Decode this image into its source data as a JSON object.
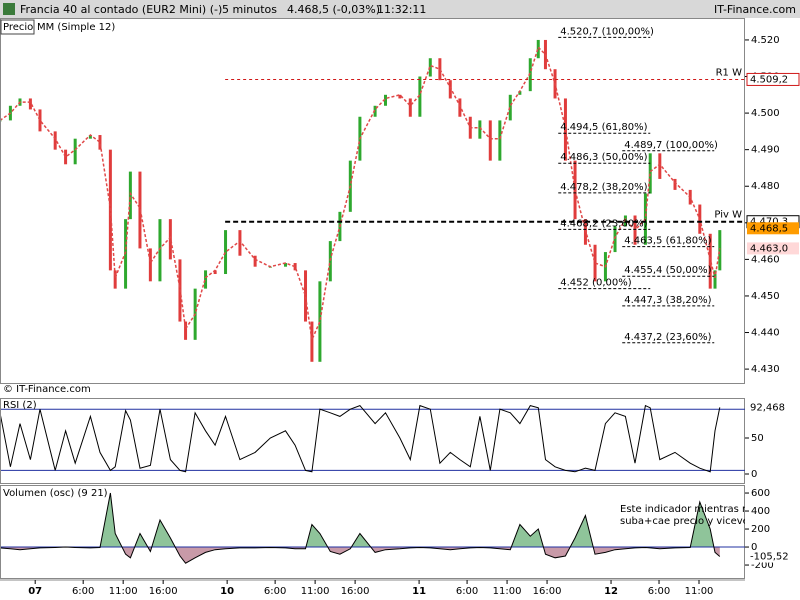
{
  "header": {
    "title": "Francia 40 al contado (EUR2 Mini) (-)",
    "interval": "5 minutos",
    "quote": "4.468,5 (-0,03%)",
    "time": "11:32:11",
    "brand": "IT-Finance.com",
    "credit": "© IT-Finance.com"
  },
  "chart_data": [
    {
      "type": "price",
      "legend": [
        "Precio",
        "MM (Simple 12)"
      ],
      "xlim": [
        -4.4,
        88.75
      ],
      "ylim": [
        4426.2,
        4526
      ],
      "yticks": [
        {
          "value": 4430,
          "label": "4.430"
        },
        {
          "value": 4440,
          "label": "4.440"
        },
        {
          "value": 4450,
          "label": "4.450"
        },
        {
          "value": 4460,
          "label": "4.460"
        },
        {
          "value": 4470,
          "label": "4.470"
        },
        {
          "value": 4480,
          "label": "4.480"
        },
        {
          "value": 4490,
          "label": "4.490"
        },
        {
          "value": 4500,
          "label": "4.500"
        },
        {
          "value": 4510,
          "label": "4.510"
        },
        {
          "value": 4520,
          "label": "4.520"
        }
      ],
      "x": [
        -4.4,
        -3.1,
        -1.9,
        -0.6,
        0.6,
        2.5,
        3.8,
        5,
        6.9,
        8.1,
        9.4,
        10,
        11.3,
        11.9,
        13.1,
        14.4,
        15.6,
        16.9,
        18.1,
        18.8,
        20,
        21.3,
        22.5,
        23.8,
        25.6,
        27.5,
        29.4,
        31.3,
        32.5,
        33.8,
        34.6,
        35.6,
        36.9,
        38.1,
        39.4,
        40.6,
        42.5,
        43.8,
        45.6,
        46.9,
        48.1,
        49.4,
        50.6,
        51.9,
        53.1,
        54.4,
        55.6,
        56.9,
        58.1,
        59.4,
        60.6,
        61.9,
        62.9,
        63.8,
        65,
        66.3,
        67.5,
        68.8,
        70,
        71.3,
        72.5,
        73.8,
        75,
        76.3,
        76.9,
        78.1,
        80,
        81.9,
        83.1,
        84.4,
        85,
        85.6
      ],
      "series": [
        {
          "name": "Precio",
          "color": "#2ea82e",
          "down_color": "#e03c3c",
          "values": [
            4498,
            4502,
            4504,
            4501,
            4495,
            4490,
            4486,
            4493,
            4494,
            4490,
            4457,
            4452,
            4471,
            4484,
            4463,
            4454,
            4471,
            4460,
            4443,
            4438,
            4452,
            4457,
            4456,
            4468,
            4461,
            4458,
            4458,
            4459,
            4457,
            4443,
            4432,
            4454,
            4465,
            4473,
            4487,
            4499,
            4502,
            4505,
            4504,
            4499,
            4510,
            4515,
            4509,
            4504,
            4499,
            4493,
            4498,
            4487,
            4498,
            4505,
            4506,
            4515,
            4520,
            4512,
            4504,
            4487,
            4471,
            4464,
            4454,
            4462,
            4469,
            4472,
            4464,
            4478,
            4489,
            4482,
            4479,
            4475,
            4467,
            4452,
            4457,
            4468
          ]
        },
        {
          "name": "MM (Simple 12)",
          "color": "#e04848",
          "values": [
            4498,
            4500,
            4503,
            4503,
            4498,
            4493,
            4488,
            4490,
            4494,
            4492,
            4474,
            4455,
            4462,
            4478,
            4474,
            4459,
            4463,
            4466,
            4452,
            4441,
            4445,
            4455,
            4457,
            4462,
            4465,
            4460,
            4458,
            4459,
            4458,
            4450,
            4438,
            4443,
            4460,
            4469,
            4480,
            4493,
            4501,
            4504,
            4505,
            4502,
            4505,
            4513,
            4512,
            4507,
            4502,
            4496,
            4496,
            4493,
            4493,
            4502,
            4506,
            4511,
            4518,
            4516,
            4508,
            4496,
            4479,
            4468,
            4459,
            4458,
            4466,
            4471,
            4468,
            4471,
            4484,
            4486,
            4481,
            4477,
            4471,
            4460,
            4455,
            4463
          ]
        }
      ],
      "levels": [
        {
          "name": "R1 W",
          "value": 4509.2,
          "label": "4.509,2",
          "from": 23.75,
          "color": "#d01818"
        },
        {
          "name": "Piv W",
          "value": 4470.3,
          "label": "4.470,3",
          "from": 23.75,
          "color": "#000000"
        }
      ],
      "markers": [
        {
          "value": 4468.5,
          "label": "4.468,5",
          "color": "#ff9c00"
        },
        {
          "value": 4463,
          "label": "4.463,0",
          "color": "#ffd8d8"
        }
      ],
      "fibonacci": [
        {
          "x": 65.4,
          "levels": [
            {
              "value": 4520.7,
              "label": "4.520,7 (100,00%)"
            },
            {
              "value": 4494.5,
              "label": "4.494,5 (61,80%)"
            },
            {
              "value": 4486.3,
              "label": "4.486,3 (50,00%)"
            },
            {
              "value": 4478.2,
              "label": "4.478,2 (38,20%)"
            },
            {
              "value": 4468.2,
              "label": "4.468,2 (23,60%)"
            },
            {
              "value": 4452,
              "label": "4.452 (0,00%)"
            }
          ]
        },
        {
          "x": 73.4,
          "levels": [
            {
              "value": 4489.7,
              "label": "4.489,7 (100,00%)"
            },
            {
              "value": 4463.5,
              "label": "4.463,5 (61,80%)"
            },
            {
              "value": 4455.4,
              "label": "4.455,4 (50,00%)"
            },
            {
              "value": 4447.3,
              "label": "4.447,3 (38,20%)"
            },
            {
              "value": 4437.2,
              "label": "4.437,2 (23,60%)"
            }
          ]
        }
      ]
    },
    {
      "type": "rsi",
      "title": "RSI (2)",
      "xlim": [
        -4.4,
        88.75
      ],
      "ylim": [
        -12.5,
        102.8
      ],
      "yticks": [
        0,
        50
      ],
      "levels": [
        90,
        5
      ],
      "x": [
        -4.4,
        -3.1,
        -1.9,
        -0.6,
        0.6,
        2.5,
        3.8,
        5,
        6.9,
        8.1,
        9.4,
        10,
        11.3,
        11.9,
        13.1,
        14.4,
        15.6,
        16.9,
        18.1,
        18.8,
        20,
        21.3,
        22.5,
        23.8,
        25.6,
        27.5,
        29.4,
        31.3,
        32.5,
        33.8,
        34.6,
        35.6,
        36.9,
        38.1,
        39.4,
        40.6,
        42.5,
        43.8,
        45.6,
        46.9,
        48.1,
        49.4,
        50.6,
        51.9,
        53.1,
        54.4,
        55.6,
        56.9,
        58.1,
        59.4,
        60.6,
        61.9,
        62.9,
        63.8,
        65,
        66.3,
        67.5,
        68.8,
        70,
        71.3,
        72.5,
        73.8,
        75,
        76.3,
        76.9,
        78.1,
        80,
        81.9,
        83.1,
        84.4,
        85,
        85.6
      ],
      "values": [
        85,
        10,
        70,
        20,
        90,
        5,
        60,
        15,
        80,
        30,
        5,
        10,
        88,
        75,
        8,
        12,
        90,
        20,
        5,
        3,
        85,
        60,
        40,
        80,
        20,
        30,
        50,
        60,
        40,
        5,
        3,
        90,
        85,
        80,
        90,
        95,
        70,
        85,
        50,
        20,
        95,
        90,
        15,
        30,
        20,
        10,
        80,
        5,
        90,
        85,
        70,
        95,
        92,
        20,
        10,
        5,
        3,
        8,
        5,
        70,
        85,
        80,
        15,
        95,
        92,
        20,
        30,
        15,
        8,
        3,
        60,
        92.468
      ],
      "color": "#000000",
      "level_color": "#2030a0",
      "current": {
        "value": 92.468,
        "label": "92,468"
      }
    },
    {
      "type": "oscillator",
      "title": "Volumen (osc) (9 21)",
      "xlim": [
        -4.4,
        88.75
      ],
      "ylim": [
        -344,
        667
      ],
      "yticks": [
        -200,
        0,
        200,
        400,
        600
      ],
      "x": [
        -4.4,
        -3.1,
        -1.9,
        -0.6,
        0.6,
        2.5,
        3.8,
        5,
        6.9,
        8.1,
        9.4,
        10,
        11.3,
        11.9,
        13.1,
        14.4,
        15.6,
        16.9,
        18.1,
        18.8,
        20,
        21.3,
        22.5,
        23.8,
        25.6,
        27.5,
        29.4,
        31.3,
        32.5,
        33.8,
        34.6,
        35.6,
        36.9,
        38.1,
        39.4,
        40.6,
        42.5,
        43.8,
        45.6,
        46.9,
        48.1,
        49.4,
        50.6,
        51.9,
        53.1,
        54.4,
        55.6,
        56.9,
        58.1,
        59.4,
        60.6,
        61.9,
        62.9,
        63.8,
        65,
        66.3,
        67.5,
        68.8,
        70,
        71.3,
        72.5,
        73.8,
        75,
        76.3,
        76.9,
        78.1,
        80,
        81.9,
        83.1,
        84.4,
        85,
        85.6
      ],
      "values": [
        -10,
        -20,
        -30,
        -20,
        -10,
        -5,
        0,
        -5,
        -10,
        -5,
        600,
        150,
        -80,
        -120,
        150,
        -50,
        300,
        100,
        -100,
        -180,
        -120,
        -60,
        -30,
        -20,
        -10,
        -10,
        -5,
        -10,
        -20,
        -20,
        250,
        150,
        -50,
        -80,
        -20,
        150,
        -60,
        -30,
        -20,
        -10,
        -5,
        -10,
        -20,
        -30,
        -20,
        -10,
        -5,
        -10,
        -20,
        -30,
        250,
        120,
        200,
        -80,
        -120,
        -100,
        100,
        350,
        -80,
        -60,
        -30,
        -20,
        -10,
        -5,
        -10,
        -20,
        -10,
        -5,
        500,
        200,
        -60,
        -105.52
      ],
      "color": "#000000",
      "up_fill": "#8fc49a",
      "down_fill": "#c89aa8",
      "level_color": "#2030a0",
      "current": {
        "value": -105.52,
        "label": "-105,52"
      },
      "note": [
        "Este indicador mientras m",
        "suba+cae precio y vicever"
      ],
      "xticks": [
        {
          "value": 0,
          "label": "07"
        },
        {
          "value": 6,
          "label": "6:00"
        },
        {
          "value": 11,
          "label": "11:00"
        },
        {
          "value": 16,
          "label": "16:00"
        },
        {
          "value": 24,
          "label": "10"
        },
        {
          "value": 30,
          "label": "6:00"
        },
        {
          "value": 35,
          "label": "11:00"
        },
        {
          "value": 40,
          "label": "16:00"
        },
        {
          "value": 48,
          "label": "11"
        },
        {
          "value": 54,
          "label": "6:00"
        },
        {
          "value": 59,
          "label": "11:00"
        },
        {
          "value": 64,
          "label": "16:00"
        },
        {
          "value": 72,
          "label": "12"
        },
        {
          "value": 78,
          "label": "6:00"
        },
        {
          "value": 83,
          "label": "11:00"
        }
      ]
    }
  ]
}
